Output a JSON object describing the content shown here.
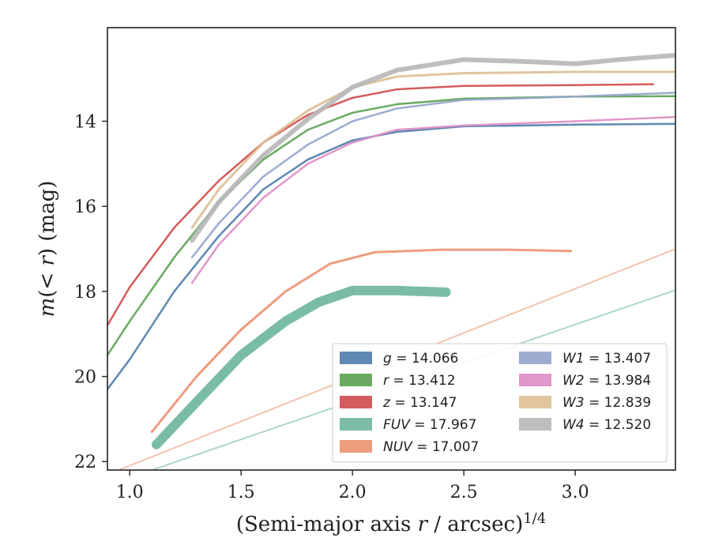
{
  "chart_data": {
    "type": "line",
    "xlabel": "(Semi-major axis r / arcsec)^1/4",
    "ylabel": "m(< r) (mag)",
    "xlim": [
      0.9,
      3.45
    ],
    "ylim": [
      22.2,
      11.8
    ],
    "y_inverted": true,
    "x_ticks": [
      "1.0",
      "1.5",
      "2.0",
      "2.5",
      "3.0"
    ],
    "y_ticks": [
      "14",
      "16",
      "18",
      "20",
      "22"
    ],
    "grid": false,
    "legend_position": "bottom-right",
    "series": [
      {
        "name": "g = 14.066",
        "color": "#4c7caa",
        "width": 2.5,
        "x": [
          0.9,
          1.0,
          1.2,
          1.4,
          1.6,
          1.8,
          2.0,
          2.2,
          2.5,
          3.0,
          3.45
        ],
        "y": [
          20.3,
          19.6,
          18.0,
          16.7,
          15.6,
          14.9,
          14.45,
          14.25,
          14.12,
          14.08,
          14.06
        ]
      },
      {
        "name": "r = 13.412",
        "color": "#59a14f",
        "width": 2.5,
        "x": [
          0.9,
          1.0,
          1.2,
          1.4,
          1.6,
          1.8,
          2.0,
          2.2,
          2.5,
          3.0,
          3.45
        ],
        "y": [
          19.5,
          18.7,
          17.2,
          15.9,
          14.9,
          14.2,
          13.8,
          13.6,
          13.47,
          13.42,
          13.41
        ]
      },
      {
        "name": "z = 13.147",
        "color": "#d04a4a",
        "width": 2.5,
        "x": [
          0.9,
          1.0,
          1.2,
          1.4,
          1.6,
          1.8,
          2.0,
          2.2,
          2.5,
          3.0,
          3.35
        ],
        "y": [
          18.8,
          17.9,
          16.5,
          15.4,
          14.5,
          13.85,
          13.45,
          13.25,
          13.17,
          13.15,
          13.13
        ]
      },
      {
        "name": "FUV = 17.967",
        "color": "#6cb59a",
        "width": 12,
        "x": [
          1.12,
          1.3,
          1.5,
          1.7,
          1.85,
          2.0,
          2.2,
          2.42
        ],
        "y": [
          21.6,
          20.6,
          19.5,
          18.7,
          18.25,
          17.98,
          17.98,
          18.02
        ]
      },
      {
        "name": "NUV = 17.007",
        "color": "#ec9170",
        "width": 3,
        "x": [
          1.1,
          1.3,
          1.5,
          1.7,
          1.9,
          2.1,
          2.4,
          2.7,
          2.98
        ],
        "y": [
          21.3,
          20.0,
          18.9,
          18.0,
          17.35,
          17.08,
          17.02,
          17.02,
          17.05
        ]
      },
      {
        "name": "W1 = 13.407",
        "color": "#93a3cc",
        "width": 2.5,
        "x": [
          1.28,
          1.4,
          1.6,
          1.8,
          2.0,
          2.2,
          2.5,
          3.0,
          3.45
        ],
        "y": [
          17.2,
          16.4,
          15.3,
          14.55,
          14.0,
          13.7,
          13.5,
          13.42,
          13.33
        ]
      },
      {
        "name": "W2 = 13.984",
        "color": "#de8cc3",
        "width": 2.5,
        "x": [
          1.28,
          1.4,
          1.6,
          1.8,
          2.0,
          2.2,
          2.5,
          3.0,
          3.45
        ],
        "y": [
          17.8,
          16.9,
          15.8,
          15.0,
          14.5,
          14.2,
          14.1,
          14.0,
          13.9
        ]
      },
      {
        "name": "W3 = 12.839",
        "color": "#ddbf94",
        "width": 3,
        "x": [
          1.28,
          1.4,
          1.6,
          1.8,
          2.0,
          2.2,
          2.5,
          3.0,
          3.45
        ],
        "y": [
          16.5,
          15.6,
          14.5,
          13.75,
          13.2,
          12.95,
          12.87,
          12.84,
          12.84
        ]
      },
      {
        "name": "W4 = 12.520",
        "color": "#b7b7b7",
        "width": 6,
        "x": [
          1.28,
          1.4,
          1.6,
          1.8,
          2.0,
          2.2,
          2.5,
          2.8,
          3.0,
          3.2,
          3.45
        ],
        "y": [
          16.8,
          15.9,
          14.8,
          13.95,
          13.2,
          12.8,
          12.55,
          12.6,
          12.65,
          12.55,
          12.45
        ]
      }
    ],
    "extensions": [
      {
        "series": "FUV = 17.967",
        "x": [
          1.1,
          3.45
        ],
        "y": [
          22.2,
          17.97
        ]
      },
      {
        "series": "NUV = 17.007",
        "x": [
          0.95,
          3.45
        ],
        "y": [
          22.2,
          17.0
        ]
      }
    ],
    "legend": {
      "col1": [
        "g = 14.066",
        "r = 13.412",
        "z = 13.147",
        "FUV = 17.967",
        "NUV = 17.007"
      ],
      "col2": [
        "W1 = 13.407",
        "W2 = 13.984",
        "W3 = 12.839",
        "W4 = 12.520"
      ]
    }
  }
}
